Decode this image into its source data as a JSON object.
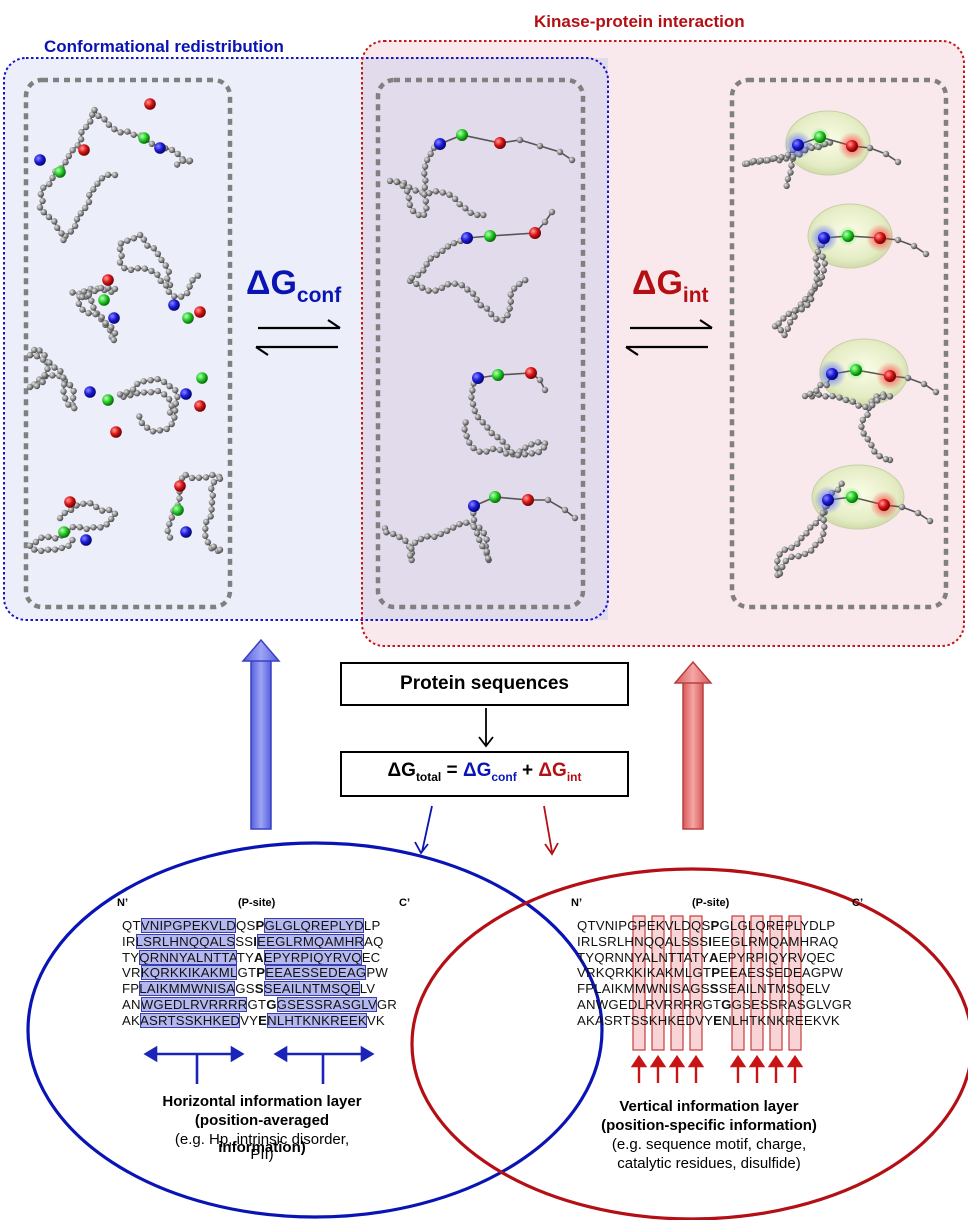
{
  "panels": {
    "left_title": "Conformational redistribution",
    "right_title": "Kinase-protein interaction",
    "dg_conf": {
      "base": "ΔG",
      "sub": "conf"
    },
    "dg_int": {
      "base": "ΔG",
      "sub": "int"
    }
  },
  "flow": {
    "sequences_label": "Protein sequences",
    "equation": {
      "lhs_base": "ΔG",
      "lhs_sub": "total",
      "eq": " = ",
      "t1_base": "ΔG",
      "t1_sub": "conf",
      "plus": " + ",
      "t2_base": "ΔG",
      "t2_sub": "int"
    }
  },
  "alignment": {
    "n_label": "N’",
    "c_label": "C’",
    "psite_label": "(P-site)",
    "rows": [
      "QTVNIPGPEKVLDQSPGLGLQREPLYDLP",
      "IRLSRLHNQQALSSSIEEGLRMQAMHRAQ",
      "TYQRNNYALNTTATYAEPYRPIQYRVQEC",
      "VRKQRKKIKAKMLGTPEEAESSEDEAGPW",
      "FPLAIKMMWNISAGSSSEAILNTMSQELV",
      "ANWGEDLRVRRRRGTGGSESSRASGLVGR",
      "AKASRTSSKHKEDVYENLHTKNKREEKVK"
    ]
  },
  "horizontal": {
    "title1": "Horizontal information  layer",
    "title2": "(position-averaged",
    "examples": "(e.g. Hp, intrinsic disorder,",
    "title3": "information)",
    "examples2": "PII)"
  },
  "vertical": {
    "title1": "Vertical information layer",
    "title2": "(position-specific information)",
    "examples1": "(e.g. sequence  motif, charge,",
    "examples2": "catalytic residues,  disulfide)"
  },
  "colors": {
    "blue": "#0a14b4",
    "red": "#b40f14",
    "left_panel_fill": "#eceef9",
    "right_panel_fill": "#f9e9ec",
    "overlap_fill": "#e2dbec",
    "box_dashes": "#808080",
    "bead": "#8a8a8a",
    "node_blue": "#1a1adc",
    "node_green": "#22cc22",
    "node_red": "#dd1111"
  }
}
